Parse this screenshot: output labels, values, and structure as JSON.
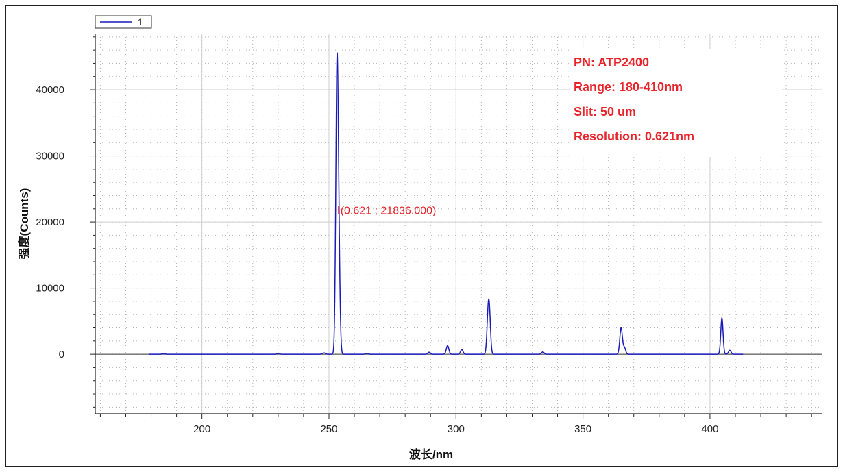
{
  "chart_data": {
    "type": "line",
    "xlabel": "波长/nm",
    "ylabel": "强度(Counts)",
    "xlim": [
      158,
      444
    ],
    "ylim": [
      -9000,
      48500
    ],
    "xticks": [
      200,
      250,
      300,
      350,
      400
    ],
    "yticks": [
      0,
      10000,
      20000,
      30000,
      40000
    ],
    "grid": "dotted fine grid with solid major gridlines",
    "legend": {
      "placement": "top-left",
      "entries": [
        "1"
      ]
    },
    "series": [
      {
        "name": "1",
        "color": "#1a1ab8",
        "baseline": 0,
        "x_range": [
          179,
          413
        ],
        "peaks": [
          {
            "x": 184.9,
            "y": 120,
            "w": 0.5
          },
          {
            "x": 230.0,
            "y": 150,
            "w": 0.5
          },
          {
            "x": 248.0,
            "y": 200,
            "w": 0.6
          },
          {
            "x": 253.2,
            "y": 43500,
            "w": 0.5
          },
          {
            "x": 254.0,
            "y": 9500,
            "w": 0.45
          },
          {
            "x": 265.0,
            "y": 150,
            "w": 0.5
          },
          {
            "x": 289.4,
            "y": 300,
            "w": 0.5
          },
          {
            "x": 296.7,
            "y": 1300,
            "w": 0.5
          },
          {
            "x": 302.3,
            "y": 700,
            "w": 0.5
          },
          {
            "x": 312.6,
            "y": 5000,
            "w": 0.45
          },
          {
            "x": 313.2,
            "y": 5400,
            "w": 0.45
          },
          {
            "x": 334.2,
            "y": 350,
            "w": 0.5
          },
          {
            "x": 365.0,
            "y": 4000,
            "w": 0.5
          },
          {
            "x": 366.3,
            "y": 1000,
            "w": 0.5
          },
          {
            "x": 404.7,
            "y": 5500,
            "w": 0.45
          },
          {
            "x": 407.8,
            "y": 600,
            "w": 0.5
          }
        ]
      }
    ],
    "annotations": {
      "info_lines": [
        "PN: ATP2400",
        "Range: 180-410nm",
        "Slit: 50 um",
        "Resolution: 0.621nm"
      ],
      "marker": {
        "x": 253.7,
        "y": 21836,
        "label": "(0.621 ; 21836.000)"
      }
    }
  },
  "colors": {
    "series": "#1a1ab8",
    "annotation": "#e8232a",
    "axis": "#222222",
    "major_grid": "#cfcfcf",
    "minor_grid": "#b4b4b4"
  }
}
